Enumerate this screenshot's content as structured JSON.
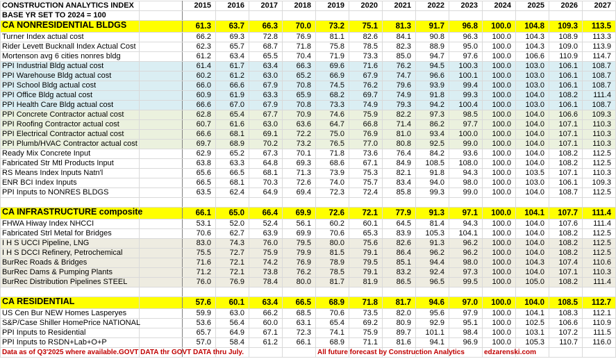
{
  "title": "CONSTRUCTION ANALYTICS INDEX",
  "subtitle": "BASE YR SET TO 2024 = 100",
  "years": [
    "2015",
    "2016",
    "2017",
    "2018",
    "2019",
    "2020",
    "2021",
    "2022",
    "2023",
    "2024",
    "2025",
    "2026",
    "2027"
  ],
  "colors": {
    "composite": "#ffff00",
    "blue_band": "#daeef3",
    "green_band": "#ebf1de",
    "gray_band": "#eeece1",
    "footer_text": "#c00000"
  },
  "rows": [
    {
      "type": "yellow",
      "label": "CA NONRESIDENTIAL BLDGS",
      "values": [
        "61.3",
        "63.7",
        "66.3",
        "70.0",
        "73.2",
        "75.1",
        "81.3",
        "91.7",
        "96.8",
        "100.0",
        "104.8",
        "109.3",
        "113.5"
      ]
    },
    {
      "type": "white",
      "label": "Turner Index actual cost",
      "values": [
        "66.2",
        "69.3",
        "72.8",
        "76.9",
        "81.1",
        "82.6",
        "84.1",
        "90.8",
        "96.3",
        "100.0",
        "104.3",
        "108.9",
        "113.3"
      ]
    },
    {
      "type": "white",
      "label": "Rider Levett Bucknall Index Actual Cost",
      "values": [
        "62.3",
        "65.7",
        "68.7",
        "71.8",
        "75.8",
        "78.5",
        "82.3",
        "88.9",
        "95.0",
        "100.0",
        "104.3",
        "109.0",
        "113.9"
      ]
    },
    {
      "type": "white",
      "label": "Mortenson avg 6 cities nonres bldg",
      "values": [
        "61.2",
        "63.4",
        "65.5",
        "70.4",
        "71.9",
        "73.3",
        "85.0",
        "94.7",
        "97.6",
        "100.0",
        "106.6",
        "110.9",
        "114.7"
      ]
    },
    {
      "type": "blue",
      "label": "PPI Industrial Bldg actual cost",
      "values": [
        "61.4",
        "61.7",
        "63.4",
        "66.3",
        "69.6",
        "71.6",
        "76.2",
        "94.5",
        "100.3",
        "100.0",
        "103.0",
        "106.1",
        "108.7"
      ]
    },
    {
      "type": "blue",
      "label": "PPI Warehouse Bldg actual cost",
      "values": [
        "60.2",
        "61.2",
        "63.0",
        "65.2",
        "66.9",
        "67.9",
        "74.7",
        "96.6",
        "100.1",
        "100.0",
        "103.0",
        "106.1",
        "108.7"
      ]
    },
    {
      "type": "blue",
      "label": "PPI School Bldg actual cost",
      "values": [
        "66.0",
        "66.6",
        "67.9",
        "70.8",
        "74.5",
        "76.2",
        "79.6",
        "93.9",
        "99.4",
        "100.0",
        "103.0",
        "106.1",
        "108.7"
      ]
    },
    {
      "type": "blue",
      "label": "PPI Office Bldg actual cost",
      "values": [
        "60.9",
        "61.9",
        "63.3",
        "65.9",
        "68.2",
        "69.7",
        "74.9",
        "91.8",
        "99.3",
        "100.0",
        "104.0",
        "108.2",
        "111.4"
      ]
    },
    {
      "type": "blue",
      "label": "PPI Health Care Bldg actual cost",
      "values": [
        "66.6",
        "67.0",
        "67.9",
        "70.8",
        "73.3",
        "74.9",
        "79.3",
        "94.2",
        "100.4",
        "100.0",
        "103.0",
        "106.1",
        "108.7"
      ]
    },
    {
      "type": "green",
      "label": "PPI Concrete Contractor actual cost",
      "values": [
        "62.8",
        "65.4",
        "67.7",
        "70.9",
        "74.6",
        "75.9",
        "82.2",
        "97.3",
        "98.5",
        "100.0",
        "104.0",
        "106.6",
        "109.3"
      ]
    },
    {
      "type": "green",
      "label": "PPI Roofing Contractor actual cost",
      "values": [
        "60.7",
        "61.6",
        "63.0",
        "63.6",
        "64.7",
        "66.8",
        "71.4",
        "86.2",
        "97.7",
        "100.0",
        "104.0",
        "107.1",
        "110.3"
      ]
    },
    {
      "type": "green",
      "label": "PPI Electrical Contractor actual cost",
      "values": [
        "66.6",
        "68.1",
        "69.1",
        "72.2",
        "75.0",
        "76.9",
        "81.0",
        "93.4",
        "100.0",
        "100.0",
        "104.0",
        "107.1",
        "110.3"
      ]
    },
    {
      "type": "green",
      "label": "PPI Plumb/HVAC Contractor actual cost",
      "values": [
        "69.7",
        "68.9",
        "70.2",
        "73.2",
        "76.5",
        "77.0",
        "80.8",
        "92.5",
        "99.0",
        "100.0",
        "104.0",
        "107.1",
        "110.3"
      ]
    },
    {
      "type": "white",
      "label": "Ready Mix Concrete Input",
      "values": [
        "62.9",
        "65.2",
        "67.3",
        "70.1",
        "71.8",
        "73.6",
        "76.4",
        "84.2",
        "93.6",
        "100.0",
        "104.0",
        "108.2",
        "112.5"
      ]
    },
    {
      "type": "white",
      "label": "Fabricated Str Mtl Products Input",
      "values": [
        "63.8",
        "63.3",
        "64.8",
        "69.3",
        "68.6",
        "67.1",
        "84.9",
        "108.5",
        "108.0",
        "100.0",
        "104.0",
        "108.2",
        "112.5"
      ]
    },
    {
      "type": "white",
      "label": "RS Means Index Inputs Natn'l",
      "values": [
        "65.6",
        "66.5",
        "68.1",
        "71.3",
        "73.9",
        "75.3",
        "82.1",
        "91.8",
        "94.3",
        "100.0",
        "103.5",
        "107.1",
        "110.3"
      ]
    },
    {
      "type": "white",
      "label": "ENR BCI Index Inputs",
      "values": [
        "66.5",
        "68.1",
        "70.3",
        "72.6",
        "74.0",
        "75.7",
        "83.4",
        "94.0",
        "98.0",
        "100.0",
        "103.0",
        "106.1",
        "109.3"
      ]
    },
    {
      "type": "white",
      "label": "PPI Inputs to NONRES BLDGS",
      "values": [
        "63.5",
        "62.4",
        "64.9",
        "69.4",
        "72.3",
        "72.4",
        "85.8",
        "99.3",
        "99.0",
        "100.0",
        "104.0",
        "108.7",
        "112.5"
      ]
    },
    {
      "type": "blank"
    },
    {
      "type": "yellow",
      "label": "CA INFRASTRUCTURE composite",
      "values": [
        "66.1",
        "65.0",
        "66.4",
        "69.9",
        "72.6",
        "72.1",
        "77.9",
        "91.3",
        "97.1",
        "100.0",
        "104.1",
        "107.7",
        "111.4"
      ]
    },
    {
      "type": "white",
      "label": "FHWA Hiway Index NHCCI",
      "values": [
        "53.1",
        "52.0",
        "52.4",
        "56.1",
        "60.2",
        "60.1",
        "64.5",
        "81.4",
        "94.3",
        "100.0",
        "104.0",
        "107.6",
        "111.4"
      ]
    },
    {
      "type": "white",
      "label": "Fabricated Strl Metal for Bridges",
      "values": [
        "70.6",
        "62.7",
        "63.9",
        "69.9",
        "70.6",
        "65.3",
        "83.9",
        "105.3",
        "104.1",
        "100.0",
        "104.0",
        "108.2",
        "112.5"
      ]
    },
    {
      "type": "gray",
      "label": "I H S UCCI Pipeline, LNG",
      "values": [
        "83.0",
        "74.3",
        "76.0",
        "79.5",
        "80.0",
        "75.6",
        "82.6",
        "91.3",
        "96.2",
        "100.0",
        "104.0",
        "108.2",
        "112.5"
      ]
    },
    {
      "type": "gray",
      "label": "I H S DCCI Refinery, Petrochemical",
      "values": [
        "75.5",
        "72.7",
        "75.9",
        "79.9",
        "81.5",
        "79.1",
        "86.4",
        "96.2",
        "96.2",
        "100.0",
        "104.0",
        "108.2",
        "112.5"
      ]
    },
    {
      "type": "gray",
      "label": "BurRec Roads & Bridges",
      "values": [
        "71.6",
        "72.1",
        "74.2",
        "76.9",
        "78.9",
        "79.5",
        "85.1",
        "94.4",
        "98.0",
        "100.0",
        "104.3",
        "107.4",
        "110.6"
      ]
    },
    {
      "type": "gray",
      "label": "BurRec Dams & Pumping Plants",
      "values": [
        "71.2",
        "72.1",
        "73.8",
        "76.2",
        "78.5",
        "79.1",
        "83.2",
        "92.4",
        "97.3",
        "100.0",
        "104.0",
        "107.1",
        "110.3"
      ]
    },
    {
      "type": "gray",
      "label": "BurRec Distribution Pipelines STEEL",
      "values": [
        "76.0",
        "76.9",
        "78.4",
        "80.0",
        "81.7",
        "81.9",
        "86.5",
        "96.5",
        "99.5",
        "100.0",
        "105.0",
        "108.2",
        "111.4"
      ]
    },
    {
      "type": "blank"
    },
    {
      "type": "yellow",
      "label": "CA RESIDENTIAL",
      "values": [
        "57.6",
        "60.1",
        "63.4",
        "66.5",
        "68.9",
        "71.8",
        "81.7",
        "94.6",
        "97.0",
        "100.0",
        "104.0",
        "108.5",
        "112.7"
      ]
    },
    {
      "type": "white",
      "label": "US Cen Bur NEW Homes Lasperyes",
      "values": [
        "59.9",
        "63.0",
        "66.2",
        "68.5",
        "70.6",
        "73.5",
        "82.0",
        "95.6",
        "97.9",
        "100.0",
        "104.1",
        "108.3",
        "112.1"
      ]
    },
    {
      "type": "white",
      "label": "S&P/Case Shiller HomePrice NATIONAL",
      "values": [
        "53.6",
        "56.4",
        "60.0",
        "63.1",
        "65.4",
        "69.2",
        "80.9",
        "92.9",
        "95.1",
        "100.0",
        "102.5",
        "106.6",
        "110.9"
      ]
    },
    {
      "type": "white",
      "label": "PPI Inputs to Residential",
      "values": [
        "65.7",
        "64.9",
        "67.1",
        "72.3",
        "74.1",
        "75.9",
        "89.7",
        "101.1",
        "98.4",
        "100.0",
        "103.1",
        "107.2",
        "111.5"
      ]
    },
    {
      "type": "white",
      "label": "PPI Inputs to RSDN+Lab+O+P",
      "values": [
        "57.0",
        "58.4",
        "61.2",
        "66.1",
        "68.9",
        "71.1",
        "81.6",
        "94.1",
        "96.9",
        "100.0",
        "105.3",
        "110.7",
        "116.0"
      ]
    }
  ],
  "footer": {
    "data_note": "Data as of Q3'2025 where available.GOVT DATA thr GOVT DATA thru July.",
    "forecast_note": "All future forecast by Construction Analytics",
    "website": "edzarenski.com"
  }
}
